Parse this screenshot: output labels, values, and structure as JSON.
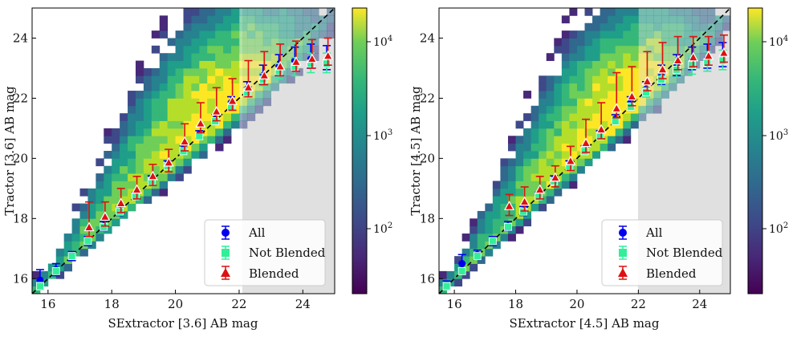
{
  "chart_data": [
    {
      "type": "scatter",
      "title": "",
      "xlabel": "SExtractor [3.6] AB mag",
      "ylabel": "Tractor [3.6] AB mag",
      "xlim": [
        15.5,
        25.0
      ],
      "ylim": [
        15.5,
        25.0
      ],
      "xticks": [
        16,
        18,
        20,
        22,
        24
      ],
      "yticks": [
        16,
        18,
        20,
        22,
        24
      ],
      "shaded_region_xmin": 22,
      "one_to_one_line": true,
      "colorbar": {
        "scale": "log",
        "min": 20,
        "max": 20000,
        "ticks": [
          "10^2",
          "10^3",
          "10^4"
        ]
      },
      "legend": {
        "position": "bottom-right",
        "entries": [
          "All",
          "Not Blended",
          "Blended"
        ]
      },
      "series": [
        {
          "name": "All",
          "color": "#0000ee",
          "x": [
            15.75,
            16.25,
            16.75,
            17.25,
            17.75,
            18.25,
            18.75,
            19.25,
            19.75,
            20.25,
            20.75,
            21.25,
            21.75,
            22.25,
            22.75,
            23.25,
            23.75,
            24.25,
            24.75
          ],
          "y": [
            15.95,
            16.3,
            16.75,
            17.25,
            17.75,
            18.25,
            18.75,
            19.3,
            19.8,
            20.3,
            20.8,
            21.3,
            21.85,
            22.3,
            22.75,
            23.05,
            23.25,
            23.3,
            23.25
          ],
          "err": [
            0.35,
            0.2,
            0.15,
            0.15,
            0.15,
            0.15,
            0.12,
            0.12,
            0.12,
            0.12,
            0.12,
            0.15,
            0.2,
            0.25,
            0.35,
            0.4,
            0.45,
            0.5,
            0.5
          ]
        },
        {
          "name": "Not Blended",
          "color": "#33ee99",
          "x": [
            15.75,
            16.25,
            16.75,
            17.25,
            17.75,
            18.25,
            18.75,
            19.25,
            19.75,
            20.25,
            20.75,
            21.25,
            21.75,
            22.25,
            22.75,
            23.25,
            23.75,
            24.25,
            24.75
          ],
          "y": [
            15.75,
            16.25,
            16.75,
            17.25,
            17.72,
            18.23,
            18.74,
            19.24,
            19.74,
            20.24,
            20.74,
            21.24,
            21.72,
            22.2,
            22.62,
            22.9,
            23.05,
            23.15,
            23.15
          ],
          "err": [
            0.12,
            0.1,
            0.1,
            0.1,
            0.1,
            0.1,
            0.1,
            0.1,
            0.1,
            0.1,
            0.1,
            0.1,
            0.12,
            0.15,
            0.2,
            0.25,
            0.3,
            0.35,
            0.35
          ]
        },
        {
          "name": "Blended",
          "color": "#dd1111",
          "x": [
            17.25,
            17.75,
            18.25,
            18.75,
            19.25,
            19.75,
            20.25,
            20.75,
            21.25,
            21.75,
            22.25,
            22.75,
            23.25,
            23.75,
            24.25,
            24.75
          ],
          "y": [
            17.7,
            18.05,
            18.5,
            18.95,
            19.4,
            19.85,
            20.55,
            21.15,
            21.55,
            21.9,
            22.35,
            22.75,
            23.05,
            23.2,
            23.3,
            23.4
          ],
          "err": [
            0.85,
            0.5,
            0.5,
            0.45,
            0.4,
            0.45,
            0.6,
            0.7,
            0.8,
            0.75,
            0.9,
            0.8,
            0.75,
            0.7,
            0.65,
            0.6
          ]
        }
      ]
    },
    {
      "type": "scatter",
      "title": "",
      "xlabel": "SExtractor [4.5] AB mag",
      "ylabel": "Tractor [4.5] AB mag",
      "xlim": [
        15.5,
        25.0
      ],
      "ylim": [
        15.5,
        25.0
      ],
      "xticks": [
        16,
        18,
        20,
        22,
        24
      ],
      "yticks": [
        16,
        18,
        20,
        22,
        24
      ],
      "shaded_region_xmin": 22,
      "one_to_one_line": true,
      "colorbar": {
        "scale": "log",
        "min": 20,
        "max": 20000,
        "ticks": [
          "10^2",
          "10^3",
          "10^4"
        ]
      },
      "legend": {
        "position": "bottom-right",
        "entries": [
          "All",
          "Not Blended",
          "Blended"
        ]
      },
      "series": [
        {
          "name": "All",
          "color": "#0000ee",
          "x": [
            15.75,
            16.25,
            16.75,
            17.25,
            17.75,
            18.25,
            18.75,
            19.25,
            19.75,
            20.25,
            20.75,
            21.25,
            21.75,
            22.25,
            22.75,
            23.25,
            23.75,
            24.25,
            24.75
          ],
          "y": [
            15.8,
            16.5,
            16.8,
            17.25,
            17.75,
            18.25,
            18.75,
            19.3,
            19.8,
            20.3,
            20.8,
            21.3,
            21.85,
            22.3,
            22.75,
            23.05,
            23.25,
            23.3,
            23.35
          ],
          "err": [
            0.12,
            0.3,
            0.15,
            0.15,
            0.15,
            0.15,
            0.12,
            0.12,
            0.12,
            0.12,
            0.12,
            0.15,
            0.2,
            0.25,
            0.35,
            0.4,
            0.45,
            0.5,
            0.5
          ]
        },
        {
          "name": "Not Blended",
          "color": "#33ee99",
          "x": [
            15.75,
            16.25,
            16.75,
            17.25,
            17.75,
            18.25,
            18.75,
            19.25,
            19.75,
            20.25,
            20.75,
            21.25,
            21.75,
            22.25,
            22.75,
            23.25,
            23.75,
            24.25,
            24.75
          ],
          "y": [
            15.75,
            16.25,
            16.75,
            17.25,
            17.72,
            18.23,
            18.74,
            19.24,
            19.74,
            20.24,
            20.74,
            21.24,
            21.72,
            22.2,
            22.62,
            22.95,
            23.1,
            23.2,
            23.25
          ],
          "err": [
            0.12,
            0.1,
            0.1,
            0.1,
            0.1,
            0.1,
            0.1,
            0.1,
            0.1,
            0.1,
            0.1,
            0.1,
            0.12,
            0.15,
            0.2,
            0.25,
            0.3,
            0.35,
            0.35
          ]
        },
        {
          "name": "Blended",
          "color": "#dd1111",
          "x": [
            17.75,
            18.25,
            18.75,
            19.25,
            19.75,
            20.25,
            20.75,
            21.25,
            21.75,
            22.25,
            22.75,
            23.25,
            23.75,
            24.25,
            24.75
          ],
          "y": [
            18.4,
            18.55,
            18.95,
            19.35,
            19.9,
            20.5,
            20.95,
            21.65,
            22.05,
            22.55,
            22.95,
            23.25,
            23.35,
            23.4,
            23.5
          ],
          "err": [
            0.4,
            0.5,
            0.45,
            0.4,
            0.5,
            0.8,
            0.9,
            1.2,
            1.0,
            1.0,
            0.9,
            0.8,
            0.7,
            0.65,
            0.6
          ]
        }
      ]
    }
  ]
}
